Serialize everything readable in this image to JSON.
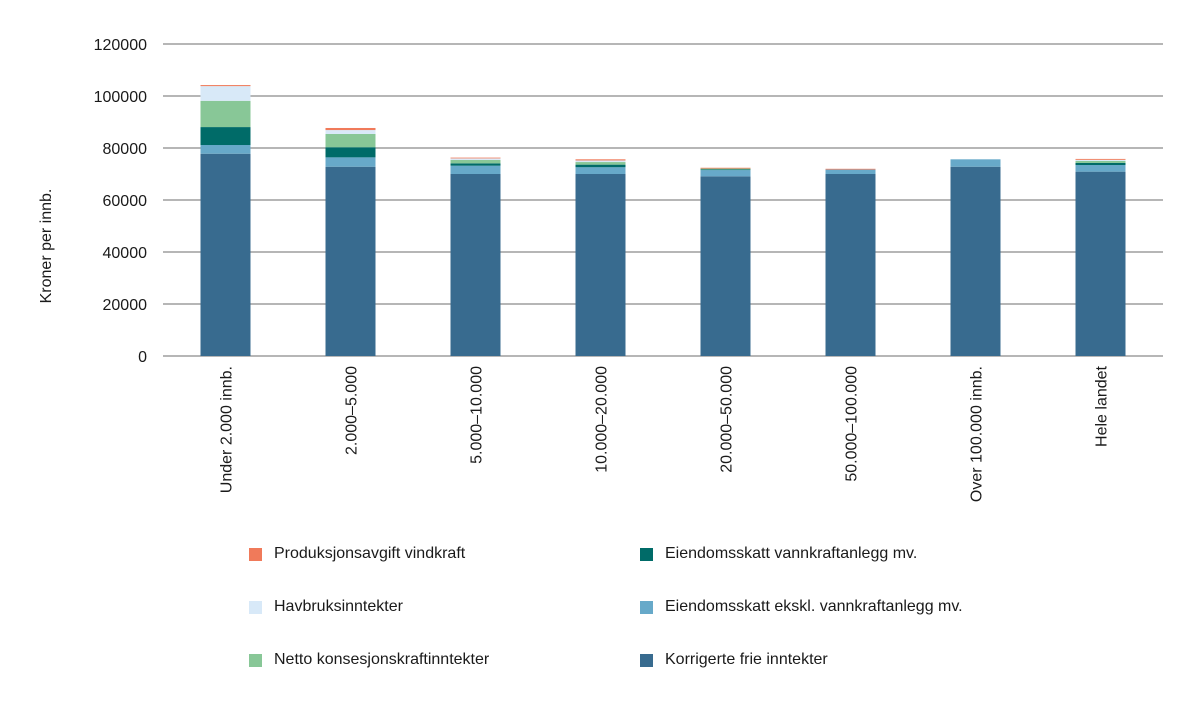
{
  "chart_data": {
    "type": "bar",
    "stacked": true,
    "ylabel": "Kroner per innb.",
    "xlabel": "",
    "ylim": [
      0,
      120000
    ],
    "yticks": [
      0,
      20000,
      40000,
      60000,
      80000,
      100000,
      120000
    ],
    "grid": true,
    "legend_position": "bottom",
    "categories": [
      "Under 2.000 innb.",
      "2.000–5.000",
      "5.000–10.000",
      "10.000–20.000",
      "20.000–50.000",
      "50.000–100.000",
      "Over 100.000 innb.",
      "Hele landet"
    ],
    "series": [
      {
        "name": "Korrigerte frie inntekter",
        "color": "#386b8f",
        "values": [
          77800,
          72800,
          70000,
          70000,
          69100,
          70000,
          72800,
          70900
        ]
      },
      {
        "name": "Eiendomsskatt ekskl. vannkraftanlegg mv.",
        "color": "#67a9c9",
        "values": [
          3350,
          3600,
          3200,
          2600,
          2400,
          1700,
          2850,
          2550
        ]
      },
      {
        "name": "Eiendomsskatt vannkraftanlegg mv.",
        "color": "#006b68",
        "values": [
          6900,
          3900,
          900,
          1000,
          300,
          0,
          0,
          800
        ]
      },
      {
        "name": "Netto konsesjonskraftinntekter",
        "color": "#88c797",
        "values": [
          10100,
          5100,
          1300,
          1000,
          300,
          0,
          0,
          800
        ]
      },
      {
        "name": "Havbruksinntekter",
        "color": "#d8e9f8",
        "values": [
          5650,
          1500,
          600,
          600,
          0,
          0,
          0,
          400
        ]
      },
      {
        "name": "Produksjonsavgift vindkraft",
        "color": "#f07a5a",
        "values": [
          400,
          800,
          300,
          450,
          300,
          300,
          0,
          350
        ]
      }
    ]
  },
  "legend_order": [
    5,
    2,
    4,
    1,
    3,
    0
  ]
}
